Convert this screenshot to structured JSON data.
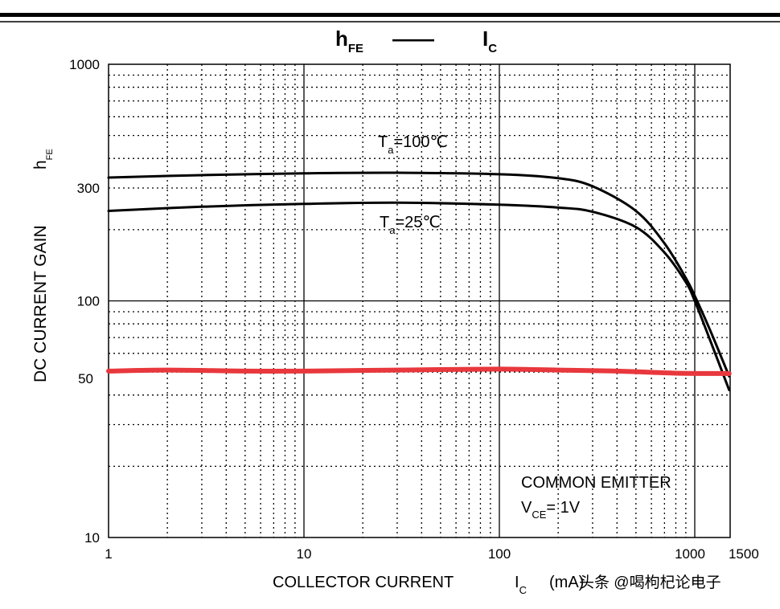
{
  "chart_data": {
    "type": "line",
    "title": {
      "main": "h",
      "main_sub": "FE",
      "dash": "——",
      "right": "I",
      "right_sub": "C"
    },
    "xlabel": {
      "text": "COLLECTOR CURRENT",
      "symbol": "I",
      "symbol_sub": "C",
      "unit": "(mA)"
    },
    "ylabel": {
      "text": "DC CURRENT GAIN",
      "symbol": "h",
      "symbol_sub": "FE"
    },
    "x_scale": "log",
    "y_scale": "log",
    "xlim": [
      1,
      1500
    ],
    "ylim": [
      10,
      1000
    ],
    "x_ticks": [
      {
        "value": 1,
        "label": "1"
      },
      {
        "value": 10,
        "label": "10"
      },
      {
        "value": 100,
        "label": "100"
      },
      {
        "value": 1000,
        "label": "1000"
      },
      {
        "value": 1500,
        "label": "1500"
      }
    ],
    "y_ticks": [
      {
        "value": 10,
        "label": "10"
      },
      {
        "value": 100,
        "label": "100"
      },
      {
        "value": 300,
        "label": "300"
      },
      {
        "value": 1000,
        "label": "1000"
      }
    ],
    "y_marker": {
      "value": 50,
      "label": "50",
      "color": "#e8383d"
    },
    "grid": true,
    "series": [
      {
        "name": "Ta=100℃",
        "label_main": "T",
        "label_sub": "a",
        "label_rest": "=100℃",
        "color": "#000000",
        "x": [
          1,
          3,
          10,
          30,
          100,
          200,
          300,
          500,
          700,
          900,
          1000,
          1200,
          1500
        ],
        "y": [
          332,
          340,
          346,
          348,
          343,
          330,
          305,
          240,
          175,
          125,
          105,
          75,
          48
        ]
      },
      {
        "name": "Ta=25℃",
        "label_main": "T",
        "label_sub": "a",
        "label_rest": "=25℃",
        "color": "#000000",
        "x": [
          1,
          3,
          10,
          30,
          100,
          200,
          300,
          500,
          700,
          900,
          1000,
          1200,
          1500
        ],
        "y": [
          240,
          250,
          257,
          260,
          255,
          248,
          238,
          205,
          160,
          120,
          100,
          68,
          42
        ]
      },
      {
        "name": "",
        "color": "#e8383d",
        "x": [
          1,
          2,
          5,
          10,
          30,
          100,
          200,
          400,
          800,
          1500
        ],
        "y": [
          50.5,
          51,
          50.5,
          50.5,
          51,
          51.5,
          51,
          50.5,
          49.5,
          49.3
        ]
      }
    ],
    "annotation": {
      "line1": "COMMON EMITTER",
      "line2_main": "V",
      "line2_sub": "CE",
      "line2_rest": "= 1V"
    }
  },
  "watermark": "头条 @喝枸杞论电子",
  "style": {
    "axis_color": "#000000",
    "marker_color": "#e8383d"
  }
}
